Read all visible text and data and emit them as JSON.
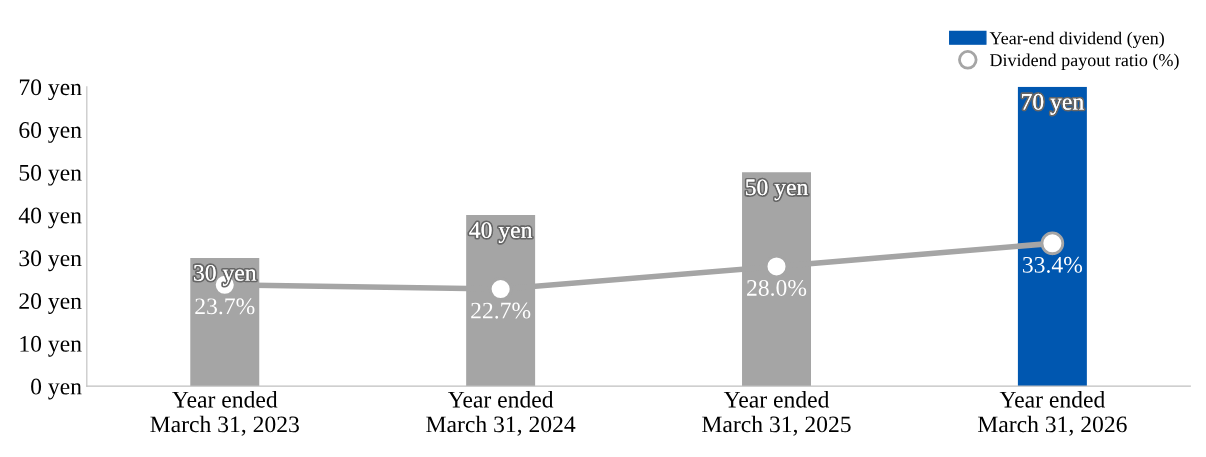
{
  "chart_data": {
    "type": "bar",
    "categories": [
      "Year ended\nMarch 31, 2023",
      "Year ended\nMarch 31, 2024",
      "Year ended\nMarch 31, 2025",
      "Year ended\nMarch 31, 2026"
    ],
    "series": [
      {
        "name": "Year-end dividend (yen)",
        "colors": [
          "#a5a5a5",
          "#a5a5a5",
          "#a5a5a5",
          "#0057b0"
        ],
        "color": "#0057b0",
        "values": [
          30,
          40,
          50,
          70
        ],
        "value_labels": [
          "30 yen",
          "40 yen",
          "50 yen",
          "70 yen"
        ]
      },
      {
        "name": "Dividend payout ratio (%)",
        "type": "line",
        "color": "#a5a5a5",
        "values": [
          23.7,
          22.7,
          28.0,
          33.4
        ],
        "value_labels": [
          "23.7%",
          "22.7%",
          "28.0%",
          "33.4%"
        ]
      }
    ],
    "ylim": [
      0,
      70
    ],
    "yticks": [
      {
        "value": 0,
        "label": "0 yen"
      },
      {
        "value": 10,
        "label": "10 yen"
      },
      {
        "value": 20,
        "label": "20 yen"
      },
      {
        "value": 30,
        "label": "30 yen"
      },
      {
        "value": 40,
        "label": "40 yen"
      },
      {
        "value": 50,
        "label": "50 yen"
      },
      {
        "value": 60,
        "label": "60 yen"
      },
      {
        "value": 70,
        "label": "70 yen"
      }
    ],
    "grid": false,
    "legend": "top right",
    "marker": "circle"
  }
}
